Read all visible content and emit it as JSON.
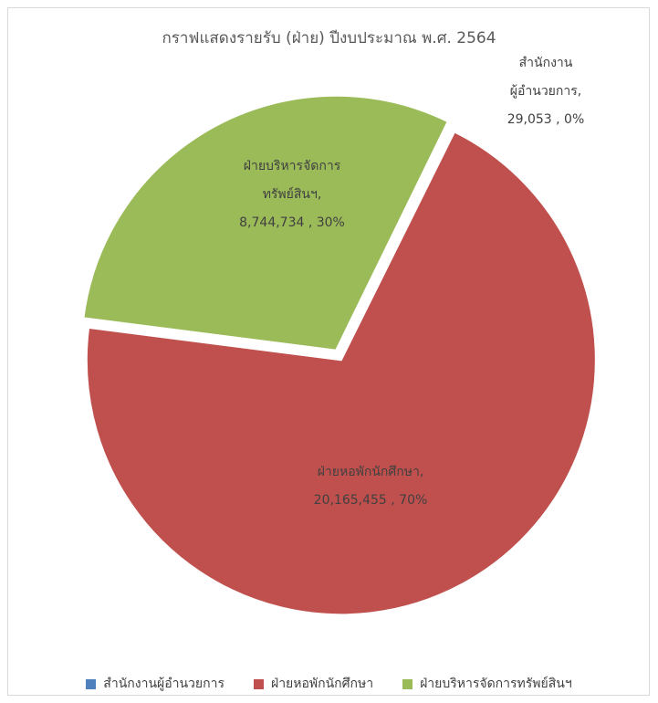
{
  "chart_data": {
    "type": "pie",
    "title": "กราฟแสดงรายรับ (ฝ่าย) ปีงบประมาณ พ.ศ. 2564",
    "slices": [
      {
        "name": "สำนักงานผู้อำนวยการ",
        "label_lines": [
          "สำนักงาน",
          "ผู้อำนวยการ,",
          "29,053 , 0%"
        ],
        "value": 29053,
        "percent": "0%",
        "color": "#4f81bd"
      },
      {
        "name": "ฝ่ายหอพักนักศึกษา",
        "label_lines": [
          "ฝ่ายหอพักนักศึกษา,",
          "20,165,455 , 70%"
        ],
        "value": 20165455,
        "percent": "70%",
        "color": "#c0504d"
      },
      {
        "name": "ฝ่ายบริหารจัดการทรัพย์สินฯ",
        "label_lines": [
          "ฝ่ายบริหารจัดการ",
          "ทรัพย์สินฯ,",
          "8,744,734 , 30%"
        ],
        "value": 8744734,
        "percent": "30%",
        "color": "#9bbb59"
      }
    ],
    "legend": {
      "position": "bottom",
      "items": [
        "สำนักงานผู้อำนวยการ",
        "ฝ่ายหอพักนักศึกษา",
        "ฝ่ายบริหารจัดการทรัพย์สินฯ"
      ]
    }
  }
}
